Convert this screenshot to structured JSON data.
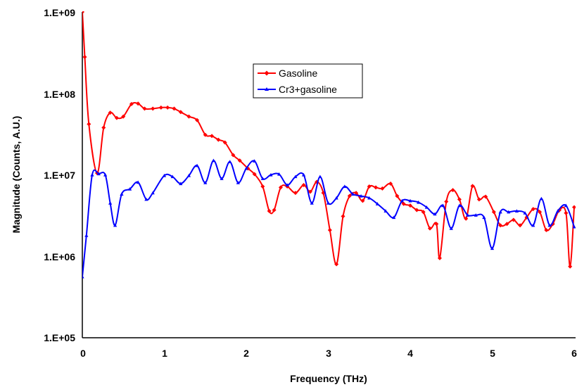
{
  "chart_data": {
    "type": "line",
    "xlabel": "Frequency (THz)",
    "ylabel": "Magnitude (Counts, A.U.)",
    "x_scale": "linear",
    "y_scale": "log",
    "xlim": [
      0,
      6
    ],
    "ylim": [
      100000,
      1000000000
    ],
    "x_ticks": [
      0,
      1,
      2,
      3,
      4,
      5,
      6
    ],
    "x_tick_labels": [
      "0",
      "1",
      "2",
      "3",
      "4",
      "5",
      "6"
    ],
    "y_ticks": [
      100000,
      1000000,
      10000000,
      100000000,
      1000000000
    ],
    "y_tick_labels": [
      "1.E+05",
      "1.E+06",
      "1.E+07",
      "1.E+08",
      "1.E+09"
    ],
    "grid": false,
    "legend_position": "upper-middle",
    "series": [
      {
        "name": "Gasoline",
        "color": "#ff0000",
        "marker": "diamond",
        "points": [
          [
            0,
            1000000000
          ],
          [
            0.03,
            280000000
          ],
          [
            0.08,
            42000000
          ],
          [
            0.18,
            10500000
          ],
          [
            0.26,
            38000000
          ],
          [
            0.34,
            58000000
          ],
          [
            0.42,
            50000000
          ],
          [
            0.5,
            52000000
          ],
          [
            0.6,
            74000000
          ],
          [
            0.68,
            75000000
          ],
          [
            0.76,
            65000000
          ],
          [
            0.86,
            65000000
          ],
          [
            0.96,
            67000000
          ],
          [
            1.04,
            67000000
          ],
          [
            1.12,
            65000000
          ],
          [
            1.2,
            59000000
          ],
          [
            1.3,
            52000000
          ],
          [
            1.4,
            47000000
          ],
          [
            1.5,
            31000000
          ],
          [
            1.58,
            30000000
          ],
          [
            1.66,
            27000000
          ],
          [
            1.74,
            25000000
          ],
          [
            1.84,
            17500000
          ],
          [
            1.92,
            15000000
          ],
          [
            2.02,
            12000000
          ],
          [
            2.1,
            10200000
          ],
          [
            2.2,
            7200000
          ],
          [
            2.28,
            3600000
          ],
          [
            2.34,
            3700000
          ],
          [
            2.42,
            7000000
          ],
          [
            2.5,
            7200000
          ],
          [
            2.6,
            6000000
          ],
          [
            2.7,
            7500000
          ],
          [
            2.78,
            6200000
          ],
          [
            2.86,
            8200000
          ],
          [
            2.94,
            6000000
          ],
          [
            3.02,
            2100000
          ],
          [
            3.1,
            800000
          ],
          [
            3.18,
            3100000
          ],
          [
            3.26,
            5500000
          ],
          [
            3.34,
            6000000
          ],
          [
            3.42,
            4800000
          ],
          [
            3.5,
            7200000
          ],
          [
            3.58,
            7000000
          ],
          [
            3.66,
            6800000
          ],
          [
            3.76,
            7800000
          ],
          [
            3.84,
            5500000
          ],
          [
            3.92,
            4400000
          ],
          [
            4,
            4200000
          ],
          [
            4.08,
            3700000
          ],
          [
            4.16,
            3500000
          ],
          [
            4.24,
            2200000
          ],
          [
            4.32,
            2500000
          ],
          [
            4.36,
            950000
          ],
          [
            4.44,
            4700000
          ],
          [
            4.52,
            6500000
          ],
          [
            4.6,
            5000000
          ],
          [
            4.68,
            2900000
          ],
          [
            4.76,
            7300000
          ],
          [
            4.84,
            5000000
          ],
          [
            4.92,
            5400000
          ],
          [
            5.02,
            3500000
          ],
          [
            5.1,
            2400000
          ],
          [
            5.18,
            2500000
          ],
          [
            5.26,
            2800000
          ],
          [
            5.34,
            2400000
          ],
          [
            5.42,
            3000000
          ],
          [
            5.5,
            3800000
          ],
          [
            5.58,
            3500000
          ],
          [
            5.66,
            2100000
          ],
          [
            5.74,
            2500000
          ],
          [
            5.82,
            3700000
          ],
          [
            5.9,
            3400000
          ],
          [
            5.95,
            750000
          ],
          [
            6,
            4000000
          ]
        ]
      },
      {
        "name": "Cr3+gasoline",
        "color": "#0000ff",
        "marker": "triangle",
        "points": [
          [
            0,
            560000
          ],
          [
            0.05,
            1800000
          ],
          [
            0.12,
            10000000
          ],
          [
            0.2,
            10300000
          ],
          [
            0.28,
            10000000
          ],
          [
            0.34,
            4500000
          ],
          [
            0.4,
            2400000
          ],
          [
            0.48,
            5800000
          ],
          [
            0.58,
            6700000
          ],
          [
            0.68,
            8100000
          ],
          [
            0.78,
            5000000
          ],
          [
            0.86,
            6000000
          ],
          [
            1,
            9800000
          ],
          [
            1.1,
            9500000
          ],
          [
            1.2,
            7800000
          ],
          [
            1.3,
            9800000
          ],
          [
            1.4,
            13000000
          ],
          [
            1.5,
            8000000
          ],
          [
            1.6,
            15000000
          ],
          [
            1.7,
            9000000
          ],
          [
            1.8,
            14500000
          ],
          [
            1.9,
            8000000
          ],
          [
            2,
            12000000
          ],
          [
            2.1,
            14800000
          ],
          [
            2.2,
            9000000
          ],
          [
            2.3,
            10000000
          ],
          [
            2.4,
            10200000
          ],
          [
            2.5,
            7500000
          ],
          [
            2.6,
            9500000
          ],
          [
            2.7,
            10000000
          ],
          [
            2.8,
            4500000
          ],
          [
            2.9,
            9500000
          ],
          [
            3,
            4500000
          ],
          [
            3.1,
            5200000
          ],
          [
            3.2,
            7200000
          ],
          [
            3.3,
            5800000
          ],
          [
            3.4,
            5500000
          ],
          [
            3.5,
            5200000
          ],
          [
            3.6,
            4400000
          ],
          [
            3.7,
            3600000
          ],
          [
            3.8,
            3000000
          ],
          [
            3.9,
            4800000
          ],
          [
            4,
            4800000
          ],
          [
            4.1,
            4600000
          ],
          [
            4.2,
            4000000
          ],
          [
            4.3,
            3300000
          ],
          [
            4.4,
            4200000
          ],
          [
            4.5,
            2200000
          ],
          [
            4.6,
            4200000
          ],
          [
            4.7,
            3200000
          ],
          [
            4.8,
            3200000
          ],
          [
            4.9,
            3000000
          ],
          [
            5,
            1250000
          ],
          [
            5.1,
            3500000
          ],
          [
            5.2,
            3500000
          ],
          [
            5.3,
            3600000
          ],
          [
            5.4,
            3400000
          ],
          [
            5.5,
            2400000
          ],
          [
            5.6,
            5100000
          ],
          [
            5.7,
            2400000
          ],
          [
            5.8,
            3600000
          ],
          [
            5.9,
            4200000
          ],
          [
            6,
            2300000
          ]
        ]
      }
    ]
  }
}
